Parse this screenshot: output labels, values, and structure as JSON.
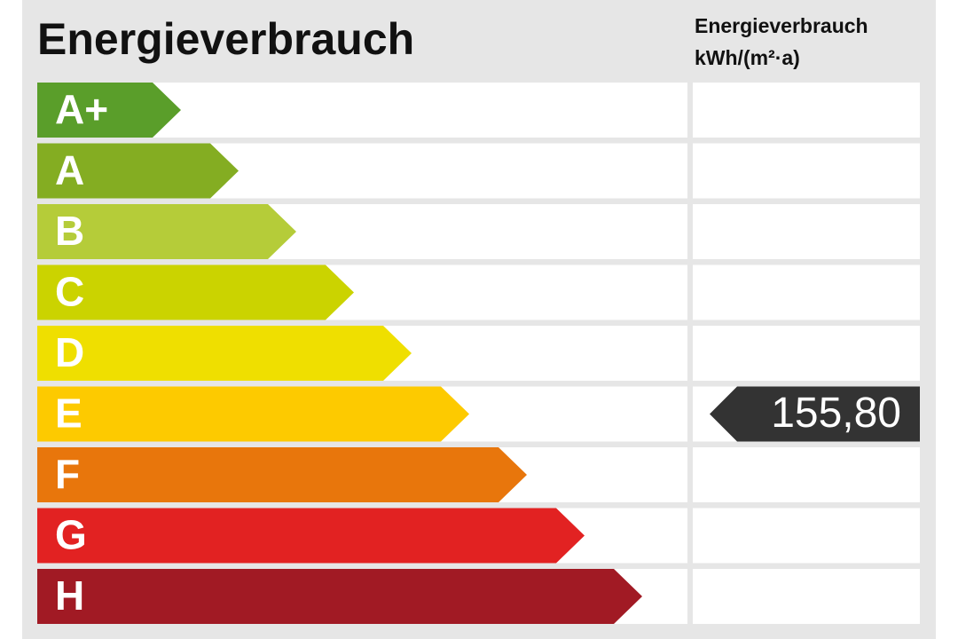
{
  "title": "Energieverbrauch",
  "column_header": [
    "Energieverbrauch",
    "kWh/(m²·a)"
  ],
  "rows": [
    {
      "label": "A+",
      "color": "#5a9e2a"
    },
    {
      "label": "A",
      "color": "#84ad22"
    },
    {
      "label": "B",
      "color": "#b5cc39"
    },
    {
      "label": "C",
      "color": "#cbd300"
    },
    {
      "label": "D",
      "color": "#efdf00"
    },
    {
      "label": "E",
      "color": "#fdca00",
      "value": "155,80"
    },
    {
      "label": "F",
      "color": "#e8760c"
    },
    {
      "label": "G",
      "color": "#e22222"
    },
    {
      "label": "H",
      "color": "#a11a24"
    }
  ]
}
